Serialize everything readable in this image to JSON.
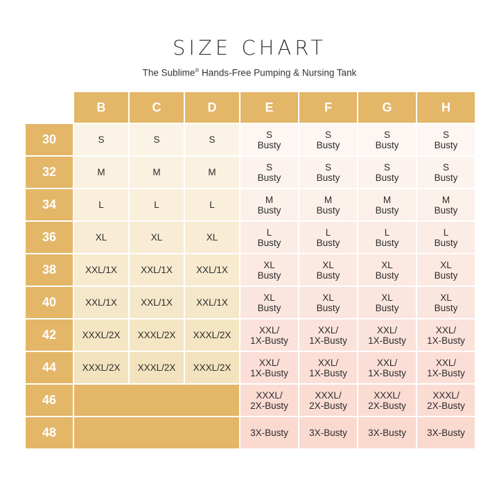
{
  "title": "SIZE CHART",
  "subtitle_main": "The Sublime",
  "subtitle_mark": "®",
  "subtitle_rest": " Hands-Free Pumping & Nursing Tank",
  "colors": {
    "header_gold": "#e3b668",
    "left_band_light": "#fbf4e6",
    "left_band_dark": "#f1ddb2",
    "right_band_light": "#fdf6f2",
    "right_band_dark": "#fad9cf"
  },
  "chart_data": {
    "type": "table",
    "columns": [
      "B",
      "C",
      "D",
      "E",
      "F",
      "G",
      "H"
    ],
    "rows": [
      {
        "band": "30",
        "cells": [
          "S",
          "S",
          "S",
          "S\nBusty",
          "S\nBusty",
          "S\nBusty",
          "S\nBusty"
        ]
      },
      {
        "band": "32",
        "cells": [
          "M",
          "M",
          "M",
          "S\nBusty",
          "S\nBusty",
          "S\nBusty",
          "S\nBusty"
        ]
      },
      {
        "band": "34",
        "cells": [
          "L",
          "L",
          "L",
          "M\nBusty",
          "M\nBusty",
          "M\nBusty",
          "M\nBusty"
        ]
      },
      {
        "band": "36",
        "cells": [
          "XL",
          "XL",
          "XL",
          "L\nBusty",
          "L\nBusty",
          "L\nBusty",
          "L\nBusty"
        ]
      },
      {
        "band": "38",
        "cells": [
          "XXL/1X",
          "XXL/1X",
          "XXL/1X",
          "XL\nBusty",
          "XL\nBusty",
          "XL\nBusty",
          "XL\nBusty"
        ]
      },
      {
        "band": "40",
        "cells": [
          "XXL/1X",
          "XXL/1X",
          "XXL/1X",
          "XL\nBusty",
          "XL\nBusty",
          "XL\nBusty",
          "XL\nBusty"
        ]
      },
      {
        "band": "42",
        "cells": [
          "XXXL/2X",
          "XXXL/2X",
          "XXXL/2X",
          "XXL/\n1X-Busty",
          "XXL/\n1X-Busty",
          "XXL/\n1X-Busty",
          "XXL/\n1X-Busty"
        ]
      },
      {
        "band": "44",
        "cells": [
          "XXXL/2X",
          "XXXL/2X",
          "XXXL/2X",
          "XXL/\n1X-Busty",
          "XXL/\n1X-Busty",
          "XXL/\n1X-Busty",
          "XXL/\n1X-Busty"
        ]
      },
      {
        "band": "46",
        "cells": [
          null,
          null,
          null,
          "XXXL/\n2X-Busty",
          "XXXL/\n2X-Busty",
          "XXXL/\n2X-Busty",
          "XXXL/\n2X-Busty"
        ]
      },
      {
        "band": "48",
        "cells": [
          null,
          null,
          null,
          "3X-Busty",
          "3X-Busty",
          "3X-Busty",
          "3X-Busty"
        ]
      }
    ]
  }
}
